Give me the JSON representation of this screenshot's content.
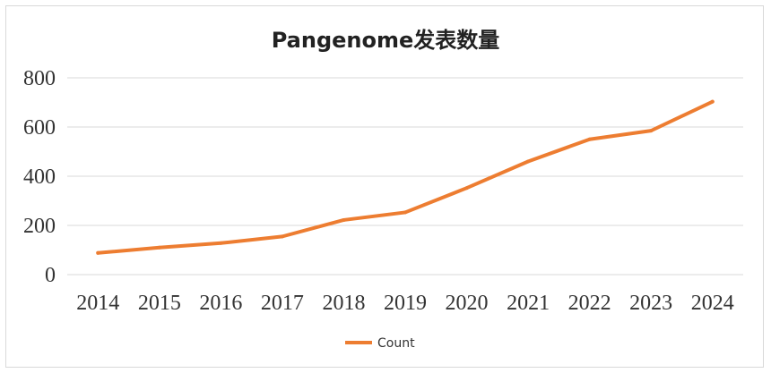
{
  "chart_data": {
    "type": "line",
    "title": "Pangenome发表数量",
    "xlabel": "",
    "ylabel": "",
    "x": [
      "2014",
      "2015",
      "2016",
      "2017",
      "2018",
      "2019",
      "2020",
      "2021",
      "2022",
      "2023",
      "2024"
    ],
    "series": [
      {
        "name": "Count",
        "values": [
          88,
          110,
          128,
          155,
          222,
          253,
          352,
          460,
          550,
          585,
          703
        ],
        "color": "#ED7D31"
      }
    ],
    "ylim": [
      0,
      800
    ],
    "yticks": [
      0,
      200,
      400,
      600,
      800
    ],
    "grid": true,
    "legend_position": "bottom"
  }
}
